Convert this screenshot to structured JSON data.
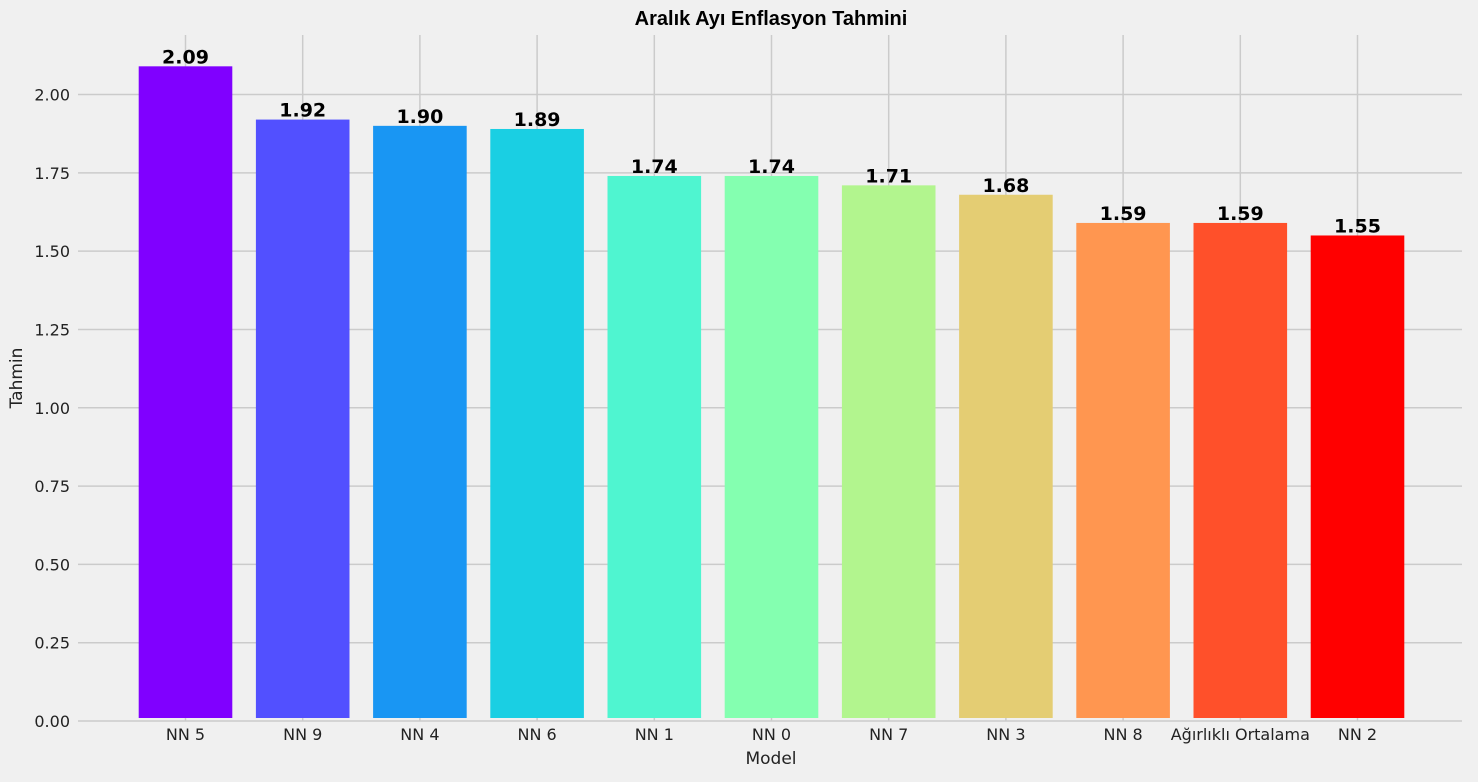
{
  "chart_data": {
    "type": "bar",
    "title": "Aralık Ayı Enflasyon Tahmini",
    "xlabel": "Model",
    "ylabel": "Tahmin",
    "categories": [
      "NN 5",
      "NN 9",
      "NN 4",
      "NN 6",
      "NN 1",
      "NN 0",
      "NN 7",
      "NN 3",
      "NN 8",
      "Ağırlıklı Ortalama",
      "NN 2"
    ],
    "values": [
      2.09,
      1.92,
      1.9,
      1.89,
      1.74,
      1.74,
      1.71,
      1.68,
      1.59,
      1.59,
      1.55
    ],
    "data_labels": [
      "2.09",
      "1.92",
      "1.90",
      "1.89",
      "1.74",
      "1.74",
      "1.71",
      "1.68",
      "1.59",
      "1.59",
      "1.55"
    ],
    "bar_colors": [
      "#8000ff",
      "#5250ff",
      "#1996f3",
      "#1acfe3",
      "#4ff5d0",
      "#84ffb0",
      "#b2f58e",
      "#e4cd73",
      "#ff9650",
      "#ff502a",
      "#ff0000"
    ],
    "ylim": [
      0,
      2.19
    ],
    "yticks": [
      0.0,
      0.25,
      0.5,
      0.75,
      1.0,
      1.25,
      1.5,
      1.75,
      2.0
    ],
    "ytick_labels": [
      "0.00",
      "0.25",
      "0.50",
      "0.75",
      "1.00",
      "1.25",
      "1.50",
      "1.75",
      "2.00"
    ],
    "grid": true,
    "background_color": "#f0f0f0",
    "grid_color": "#cbcbcb"
  }
}
